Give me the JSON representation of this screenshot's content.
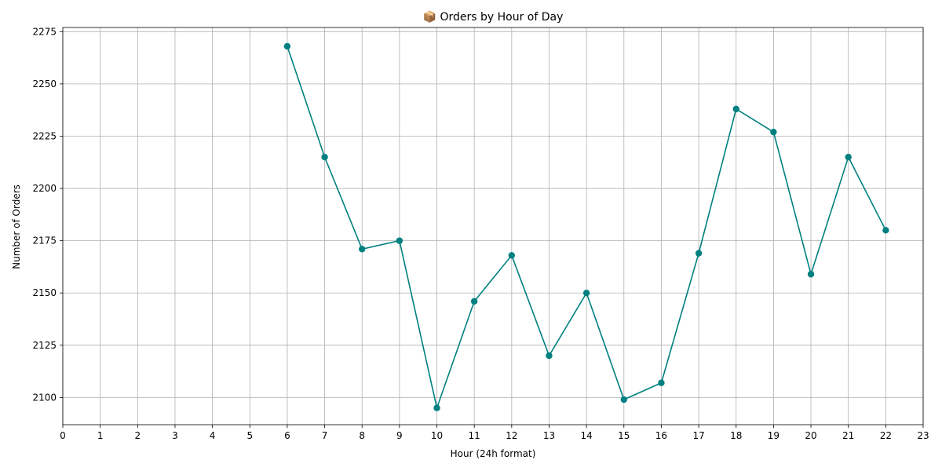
{
  "chart_data": {
    "type": "line",
    "title": "📦 Orders by Hour of Day",
    "xlabel": "Hour (24h format)",
    "ylabel": "Number of Orders",
    "xlim": [
      0,
      23
    ],
    "ylim": [
      2087,
      2277
    ],
    "xticks": [
      0,
      1,
      2,
      3,
      4,
      5,
      6,
      7,
      8,
      9,
      10,
      11,
      12,
      13,
      14,
      15,
      16,
      17,
      18,
      19,
      20,
      21,
      22,
      23
    ],
    "yticks": [
      2100,
      2125,
      2150,
      2175,
      2200,
      2225,
      2250,
      2275
    ],
    "grid": true,
    "line_color": "#008080",
    "grid_color": "#b0b0b0",
    "series": [
      {
        "x": [
          6,
          7,
          8,
          9,
          10,
          11,
          12,
          13,
          14,
          15,
          16,
          17,
          18,
          19,
          20,
          21,
          22
        ],
        "values": [
          2268,
          2215,
          2171,
          2175,
          2095,
          2146,
          2168,
          2120,
          2150,
          2099,
          2107,
          2169,
          2238,
          2227,
          2159,
          2215,
          2180
        ]
      }
    ]
  }
}
